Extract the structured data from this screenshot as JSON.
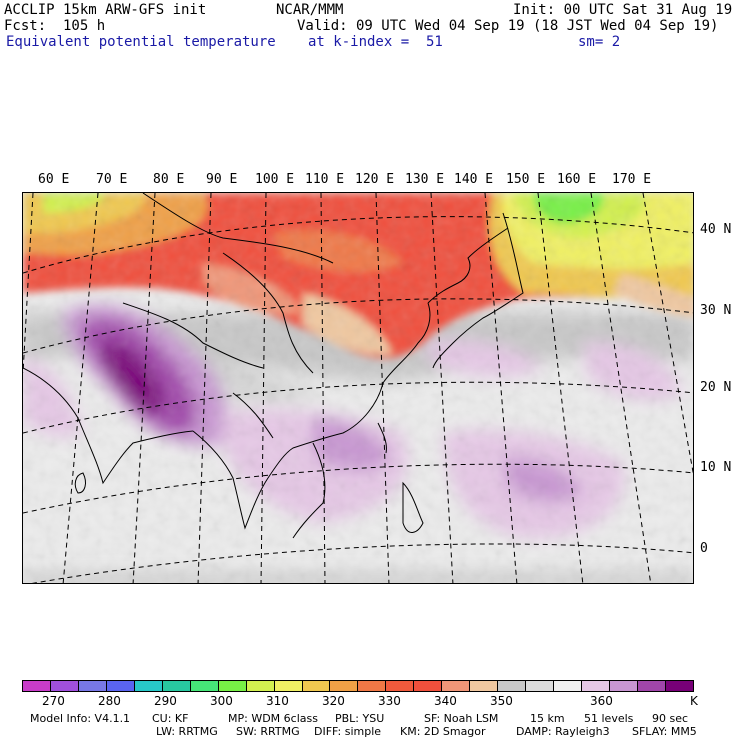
{
  "header": {
    "model": "ACCLIP 15km ARW-GFS init",
    "fcst": "Fcst:  105 h",
    "org": "NCAR/MMM",
    "init": "Init: 00 UTC Sat 31 Aug 19",
    "valid": "Valid: 09 UTC Wed 04 Sep 19 (18 JST Wed 04 Sep 19)",
    "field": "Equivalent potential temperature",
    "level": "at k-index =  51",
    "smooth": "sm= 2"
  },
  "map": {
    "lon_labels": [
      "60 E",
      "70 E",
      "80 E",
      "90 E",
      "100 E",
      "110 E",
      "120 E",
      "130 E",
      "140 E",
      "150 E",
      "160 E",
      "170 E"
    ],
    "lat_labels": [
      "40 N",
      "30 N",
      "20 N",
      "10 N",
      "0"
    ]
  },
  "colorbar": {
    "colors": [
      "#c83cc8",
      "#a050dc",
      "#7878e6",
      "#5a64f0",
      "#28c8c8",
      "#28c8a0",
      "#46e678",
      "#78f046",
      "#d2f050",
      "#f0f064",
      "#f0c850",
      "#f0a046",
      "#f07846",
      "#f05a3c",
      "#f0503c",
      "#f09678",
      "#f0c8a0",
      "#c8c8c8",
      "#dcdcdc",
      "#f0f0f0",
      "#e6c8e6",
      "#c896d2",
      "#a046aa",
      "#780078"
    ],
    "tick_labels": [
      "270",
      "280",
      "290",
      "300",
      "310",
      "320",
      "330",
      "340",
      "350",
      "360"
    ],
    "unit": "K"
  },
  "footer": {
    "line1": [
      "Model Info: V4.1.1",
      "CU: KF",
      "MP: WDM 6class",
      "PBL: YSU",
      "SF: Noah LSM",
      "15 km",
      "51 levels",
      "90 sec"
    ],
    "line2": [
      "LW: RRTMG",
      "SW: RRTMG",
      "DIFF: simple",
      "KM: 2D Smagor",
      "DAMP: Rayleigh3",
      "SFLAY: MM5"
    ]
  }
}
